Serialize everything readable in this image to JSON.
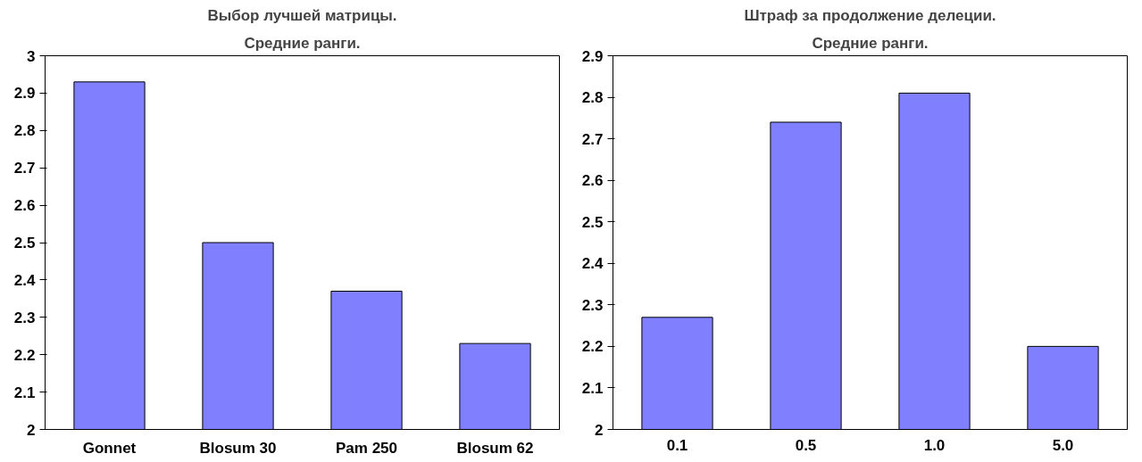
{
  "chart_data": [
    {
      "type": "bar",
      "title": "Выбор лучшей матрицы.",
      "subtitle": "Средние ранги.",
      "categories": [
        "Gonnet",
        "Blosum 30",
        "Pam 250",
        "Blosum 62"
      ],
      "values": [
        2.93,
        2.5,
        2.37,
        2.23
      ],
      "color": "#8080ff",
      "ylim": [
        2,
        3
      ],
      "yticks": [
        2,
        2.1,
        2.2,
        2.3,
        2.4,
        2.5,
        2.6,
        2.7,
        2.8,
        2.9,
        3
      ],
      "grid": false
    },
    {
      "type": "bar",
      "title": "Штраф за продолжение делеции.",
      "subtitle": "Средние ранги.",
      "categories": [
        "0.1",
        "0.5",
        "1.0",
        "5.0"
      ],
      "values": [
        2.27,
        2.74,
        2.81,
        2.2
      ],
      "color": "#8080ff",
      "ylim": [
        2,
        2.9
      ],
      "yticks": [
        2,
        2.1,
        2.2,
        2.3,
        2.4,
        2.5,
        2.6,
        2.7,
        2.8,
        2.9
      ],
      "grid": false
    }
  ]
}
